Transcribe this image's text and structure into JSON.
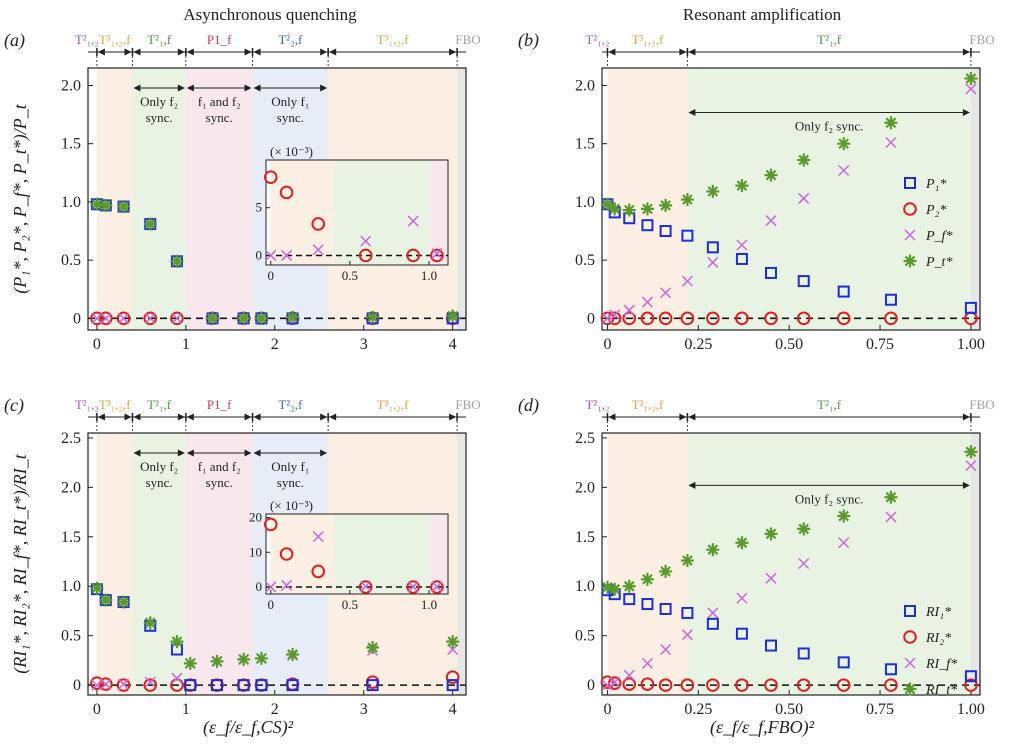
{
  "figure": {
    "col_titles": [
      "Asynchronous quenching",
      "Resonant amplification"
    ],
    "xlabel_left": "(ε_f/ε_f,CS)²",
    "xlabel_right": "(ε_f/ε_f,FBO)²"
  },
  "colors": {
    "p1": "#1a2ee0",
    "p2": "#e02020",
    "pf": "#cc66dd",
    "pt": "#5a9a2a",
    "t12": "#b04fc8",
    "t3": "#e8a040",
    "t1f": "#4a9a3a",
    "p1f": "#c83a5a",
    "t2f": "#3a6ab8",
    "fbo": "#a0a0a0"
  },
  "chart_data": [
    {
      "panel": "a",
      "type": "scatter",
      "panel_label": "(a)",
      "ylabel": "(P₁*, P₂*, P_f*, P_t*)/P_t",
      "xlim": [
        -0.1,
        4.15
      ],
      "ylim": [
        -0.1,
        2.15
      ],
      "xticks": [
        0,
        1,
        2,
        3,
        4
      ],
      "xticklabels": [
        "0",
        "1",
        "2",
        "3",
        "4"
      ],
      "yticks": [
        0,
        0.5,
        1.0,
        1.5,
        2.0
      ],
      "yticklabels": [
        "0",
        "0.5",
        "1.0",
        "1.5",
        "2.0"
      ],
      "regions": [
        {
          "label": "T²₁,₂",
          "from": -0.1,
          "to": 0.0,
          "color": "t12",
          "fill": "#ffffff"
        },
        {
          "label": "T³₁,₂,f",
          "from": 0.0,
          "to": 0.4,
          "color": "t3",
          "fill": "#fbeee2"
        },
        {
          "label": "T²₁,f",
          "from": 0.4,
          "to": 1.0,
          "color": "t1f",
          "fill": "#e9f3e4"
        },
        {
          "label": "P1_f",
          "from": 1.0,
          "to": 1.75,
          "color": "p1f",
          "fill": "#f8e8ee"
        },
        {
          "label": "T²₂,f",
          "from": 1.75,
          "to": 2.6,
          "color": "t2f",
          "fill": "#e6edf6"
        },
        {
          "label": "T³₁,₂,f",
          "from": 2.6,
          "to": 4.05,
          "color": "t3",
          "fill": "#fbeee2"
        },
        {
          "label": "FBO",
          "from": 4.05,
          "to": 4.15,
          "color": "fbo",
          "fill": "#e6e6e6"
        }
      ],
      "annotations": [
        {
          "lines": [
            "Only f₂",
            "sync."
          ],
          "from": 0.4,
          "to": 1.0
        },
        {
          "lines": [
            "f₁ and f₂",
            "sync."
          ],
          "from": 1.0,
          "to": 1.75
        },
        {
          "lines": [
            "Only f₁",
            "sync."
          ],
          "from": 1.75,
          "to": 2.6
        }
      ],
      "series": [
        {
          "key": "p1",
          "marker": "square",
          "x": [
            0,
            0.1,
            0.3,
            0.6,
            0.9,
            1.3,
            1.65,
            1.85,
            2.2,
            3.1,
            4.0
          ],
          "y": [
            0.98,
            0.97,
            0.96,
            0.81,
            0.49,
            0,
            0,
            0,
            0,
            0,
            0
          ]
        },
        {
          "key": "p2",
          "marker": "circle",
          "x": [
            0,
            0.1,
            0.3,
            0.6,
            0.9,
            1.3,
            1.65,
            1.85,
            2.2,
            3.1,
            4.0
          ],
          "y": [
            0,
            0,
            0,
            0,
            0,
            0,
            0,
            0,
            0,
            0,
            0
          ]
        },
        {
          "key": "pf",
          "marker": "x",
          "x": [
            0,
            0.1,
            0.3,
            0.6,
            0.9,
            1.3,
            1.65,
            1.85,
            2.2,
            3.1,
            4.0
          ],
          "y": [
            0,
            0,
            0,
            0,
            0,
            0,
            0,
            0,
            0,
            0.01,
            0.01
          ]
        },
        {
          "key": "pt",
          "marker": "star",
          "x": [
            0,
            0.1,
            0.3,
            0.6,
            0.9,
            1.3,
            1.65,
            1.85,
            2.2,
            3.1,
            4.0
          ],
          "y": [
            0.98,
            0.97,
            0.96,
            0.81,
            0.49,
            0,
            0,
            0,
            0.01,
            0.01,
            0.02
          ]
        }
      ],
      "inset": {
        "multiplier": "(× 10⁻³)",
        "xlim": [
          -0.03,
          1.12
        ],
        "ylim": [
          -1.0,
          10.0
        ],
        "xticks": [
          0,
          0.5,
          1.0
        ],
        "xticklabels": [
          "0",
          "0.5",
          "1.0"
        ],
        "yticks": [
          0,
          5
        ],
        "yticklabels": [
          "0",
          "5"
        ],
        "series": [
          {
            "key": "p2",
            "marker": "circle",
            "x": [
              0,
              0.1,
              0.3,
              0.6,
              0.9,
              1.05
            ],
            "y": [
              8.2,
              6.6,
              3.3,
              0,
              0,
              0
            ]
          },
          {
            "key": "pf",
            "marker": "x",
            "x": [
              0,
              0.1,
              0.3,
              0.6,
              0.9,
              1.05
            ],
            "y": [
              0,
              0,
              0.6,
              1.5,
              3.6,
              0.2
            ]
          }
        ]
      }
    },
    {
      "panel": "b",
      "type": "scatter",
      "panel_label": "(b)",
      "ylabel": "",
      "xlim": [
        -0.015,
        1.025
      ],
      "ylim": [
        -0.1,
        2.15
      ],
      "xticks": [
        0,
        0.25,
        0.5,
        0.75,
        1.0
      ],
      "xticklabels": [
        "0",
        "0.25",
        "0.50",
        "0.75",
        "1.00"
      ],
      "yticks": [
        0,
        0.5,
        1.0,
        1.5,
        2.0
      ],
      "yticklabels": [
        "0",
        "0.5",
        "1.0",
        "1.5",
        "2.0"
      ],
      "regions": [
        {
          "label": "T²₁,₂",
          "from": -0.015,
          "to": 0.0,
          "color": "t12",
          "fill": "#ffffff"
        },
        {
          "label": "T³₁,₂,f",
          "from": 0.0,
          "to": 0.22,
          "color": "t3",
          "fill": "#fbeee2"
        },
        {
          "label": "T²₁,f",
          "from": 0.22,
          "to": 1.0,
          "color": "t1f",
          "fill": "#e9f3e4"
        },
        {
          "label": "FBO",
          "from": 1.0,
          "to": 1.025,
          "color": "fbo",
          "fill": "#e6e6e6"
        }
      ],
      "annotations": [
        {
          "lines": [
            "Only f₂ sync."
          ],
          "from": 0.22,
          "to": 1.0,
          "y_frac": 0.17
        }
      ],
      "legend": {
        "position": "right",
        "entries": [
          {
            "key": "p1",
            "label": "P₁*"
          },
          {
            "key": "p2",
            "label": "P₂*"
          },
          {
            "key": "pf",
            "label": "P_f*"
          },
          {
            "key": "pt",
            "label": "P_t*"
          }
        ]
      },
      "series": [
        {
          "key": "p1",
          "marker": "square",
          "x": [
            0,
            0.02,
            0.06,
            0.11,
            0.16,
            0.22,
            0.29,
            0.37,
            0.45,
            0.54,
            0.65,
            0.78,
            1.0
          ],
          "y": [
            0.98,
            0.91,
            0.86,
            0.8,
            0.75,
            0.71,
            0.61,
            0.51,
            0.39,
            0.32,
            0.23,
            0.16,
            0.09
          ]
        },
        {
          "key": "p2",
          "marker": "circle",
          "x": [
            0,
            0.02,
            0.06,
            0.11,
            0.16,
            0.22,
            0.29,
            0.37,
            0.45,
            0.54,
            0.65,
            0.78,
            1.0
          ],
          "y": [
            0,
            0,
            0,
            0,
            0,
            0,
            0,
            0,
            0,
            0,
            0,
            0,
            0
          ]
        },
        {
          "key": "pf",
          "marker": "x",
          "x": [
            0,
            0.02,
            0.06,
            0.11,
            0.16,
            0.22,
            0.29,
            0.37,
            0.45,
            0.54,
            0.65,
            0.78,
            1.0
          ],
          "y": [
            0,
            0.03,
            0.07,
            0.14,
            0.22,
            0.32,
            0.48,
            0.63,
            0.84,
            1.03,
            1.27,
            1.51,
            1.97
          ]
        },
        {
          "key": "pt",
          "marker": "star",
          "x": [
            0,
            0.02,
            0.06,
            0.11,
            0.16,
            0.22,
            0.29,
            0.37,
            0.45,
            0.54,
            0.65,
            0.78,
            1.0
          ],
          "y": [
            0.98,
            0.94,
            0.93,
            0.94,
            0.97,
            1.02,
            1.09,
            1.14,
            1.23,
            1.36,
            1.5,
            1.68,
            2.06
          ]
        }
      ]
    },
    {
      "panel": "c",
      "type": "scatter",
      "panel_label": "(c)",
      "ylabel": "(RI₁*, RI₂*, RI_f*, RI_t*)/RI_t",
      "xlim": [
        -0.1,
        4.15
      ],
      "ylim": [
        -0.1,
        2.55
      ],
      "xticks": [
        0,
        1,
        2,
        3,
        4
      ],
      "xticklabels": [
        "0",
        "1",
        "2",
        "3",
        "4"
      ],
      "yticks": [
        0,
        0.5,
        1.0,
        1.5,
        2.0,
        2.5
      ],
      "yticklabels": [
        "0",
        "0.5",
        "1.0",
        "1.5",
        "2.0",
        "2.5"
      ],
      "regions": [
        {
          "label": "T²₁,₂",
          "from": -0.1,
          "to": 0.0,
          "color": "t12",
          "fill": "#ffffff"
        },
        {
          "label": "T³₁,₂,f",
          "from": 0.0,
          "to": 0.4,
          "color": "t3",
          "fill": "#fbeee2"
        },
        {
          "label": "T²₁,f",
          "from": 0.4,
          "to": 1.0,
          "color": "t1f",
          "fill": "#e9f3e4"
        },
        {
          "label": "P1_f",
          "from": 1.0,
          "to": 1.75,
          "color": "p1f",
          "fill": "#f8e8ee"
        },
        {
          "label": "T²₂,f",
          "from": 1.75,
          "to": 2.6,
          "color": "t2f",
          "fill": "#e6edf6"
        },
        {
          "label": "T³₁,₂,f",
          "from": 2.6,
          "to": 4.05,
          "color": "t3",
          "fill": "#fbeee2"
        },
        {
          "label": "FBO",
          "from": 4.05,
          "to": 4.15,
          "color": "fbo",
          "fill": "#e6e6e6"
        }
      ],
      "annotations": [
        {
          "lines": [
            "Only f₂",
            "sync."
          ],
          "from": 0.4,
          "to": 1.0
        },
        {
          "lines": [
            "f₁ and f₂",
            "sync."
          ],
          "from": 1.0,
          "to": 1.75
        },
        {
          "lines": [
            "Only f₁",
            "sync."
          ],
          "from": 1.75,
          "to": 2.6
        }
      ],
      "series": [
        {
          "key": "p1",
          "marker": "square",
          "x": [
            0,
            0.1,
            0.3,
            0.6,
            0.9,
            1.05,
            1.35,
            1.65,
            1.85,
            2.2,
            3.1,
            4.0
          ],
          "y": [
            0.97,
            0.86,
            0.84,
            0.6,
            0.36,
            0,
            0,
            0,
            0,
            0,
            0,
            0
          ]
        },
        {
          "key": "p2",
          "marker": "circle",
          "x": [
            0,
            0.1,
            0.3,
            0.6,
            0.9,
            1.05,
            1.35,
            1.65,
            1.85,
            2.2,
            3.1,
            4.0
          ],
          "y": [
            0.02,
            0.01,
            0.0,
            0,
            0,
            0,
            0,
            0,
            0,
            0.01,
            0.03,
            0.08
          ]
        },
        {
          "key": "pf",
          "marker": "x",
          "x": [
            0,
            0.1,
            0.3,
            0.6,
            0.9,
            1.05,
            1.35,
            1.65,
            1.85,
            2.2,
            3.1,
            4.0
          ],
          "y": [
            0,
            0.01,
            0.01,
            0.03,
            0.07,
            0.22,
            0.24,
            0.26,
            0.27,
            0.3,
            0.35,
            0.36
          ]
        },
        {
          "key": "pt",
          "marker": "star",
          "x": [
            0,
            0.1,
            0.3,
            0.6,
            0.9,
            1.05,
            1.35,
            1.65,
            1.85,
            2.2,
            3.1,
            4.0
          ],
          "y": [
            0.98,
            0.86,
            0.84,
            0.63,
            0.44,
            0.22,
            0.24,
            0.26,
            0.27,
            0.31,
            0.38,
            0.44
          ]
        }
      ],
      "inset": {
        "multiplier": "(× 10⁻³)",
        "xlim": [
          -0.03,
          1.12
        ],
        "ylim": [
          -2.0,
          21.0
        ],
        "xticks": [
          0,
          0.5,
          1.0
        ],
        "xticklabels": [
          "0",
          "0.5",
          "1.0"
        ],
        "yticks": [
          0,
          10,
          20
        ],
        "yticklabels": [
          "0",
          "10",
          "20"
        ],
        "series": [
          {
            "key": "p2",
            "marker": "circle",
            "x": [
              0,
              0.1,
              0.3,
              0.6,
              0.9,
              1.05
            ],
            "y": [
              18,
              9.5,
              4.5,
              0,
              0,
              0
            ]
          },
          {
            "key": "pf",
            "marker": "x",
            "x": [
              0,
              0.1,
              0.3,
              0.6,
              0.9,
              1.05
            ],
            "y": [
              0,
              0.5,
              14.5,
              0.2,
              0.1,
              0.1
            ]
          }
        ]
      }
    },
    {
      "panel": "d",
      "type": "scatter",
      "panel_label": "(d)",
      "ylabel": "",
      "xlim": [
        -0.015,
        1.025
      ],
      "ylim": [
        -0.1,
        2.55
      ],
      "xticks": [
        0,
        0.25,
        0.5,
        0.75,
        1.0
      ],
      "xticklabels": [
        "0",
        "0.25",
        "0.50",
        "0.75",
        "1.00"
      ],
      "yticks": [
        0,
        0.5,
        1.0,
        1.5,
        2.0,
        2.5
      ],
      "yticklabels": [
        "0",
        "0.5",
        "1.0",
        "1.5",
        "2.0",
        "2.5"
      ],
      "regions": [
        {
          "label": "T²₁,₂",
          "from": -0.015,
          "to": 0.0,
          "color": "t12",
          "fill": "#ffffff"
        },
        {
          "label": "T³₁,₂,f",
          "from": 0.0,
          "to": 0.22,
          "color": "t3",
          "fill": "#fbeee2"
        },
        {
          "label": "T²₁,f",
          "from": 0.22,
          "to": 1.0,
          "color": "t1f",
          "fill": "#e9f3e4"
        },
        {
          "label": "FBO",
          "from": 1.0,
          "to": 1.025,
          "color": "fbo",
          "fill": "#e6e6e6"
        }
      ],
      "annotations": [
        {
          "lines": [
            "Only f₂ sync."
          ],
          "from": 0.22,
          "to": 1.0,
          "y_frac": 0.2
        }
      ],
      "legend": {
        "position": "right",
        "entries": [
          {
            "key": "p1",
            "label": "RI₁*"
          },
          {
            "key": "p2",
            "label": "RI₂*"
          },
          {
            "key": "pf",
            "label": "RI_f*"
          },
          {
            "key": "pt",
            "label": "RI_t*"
          }
        ]
      },
      "series": [
        {
          "key": "p1",
          "marker": "square",
          "x": [
            0,
            0.02,
            0.06,
            0.11,
            0.16,
            0.22,
            0.29,
            0.37,
            0.45,
            0.54,
            0.65,
            0.78,
            1.0
          ],
          "y": [
            0.96,
            0.92,
            0.87,
            0.82,
            0.77,
            0.73,
            0.62,
            0.52,
            0.4,
            0.32,
            0.23,
            0.16,
            0.09
          ]
        },
        {
          "key": "p2",
          "marker": "circle",
          "x": [
            0,
            0.02,
            0.06,
            0.11,
            0.16,
            0.22,
            0.29,
            0.37,
            0.45,
            0.54,
            0.65,
            0.78,
            1.0
          ],
          "y": [
            0.03,
            0.02,
            0.01,
            0.01,
            0,
            0,
            0,
            0,
            0,
            0,
            0,
            0,
            0
          ]
        },
        {
          "key": "pf",
          "marker": "x",
          "x": [
            0,
            0.02,
            0.06,
            0.11,
            0.16,
            0.22,
            0.29,
            0.37,
            0.45,
            0.54,
            0.65,
            0.78,
            1.0
          ],
          "y": [
            0,
            0.03,
            0.1,
            0.22,
            0.36,
            0.51,
            0.73,
            0.88,
            1.08,
            1.23,
            1.44,
            1.7,
            2.22
          ]
        },
        {
          "key": "pt",
          "marker": "star",
          "x": [
            0,
            0.02,
            0.06,
            0.11,
            0.16,
            0.22,
            0.29,
            0.37,
            0.45,
            0.54,
            0.65,
            0.78,
            1.0
          ],
          "y": [
            0.99,
            0.97,
            1.0,
            1.07,
            1.15,
            1.26,
            1.37,
            1.44,
            1.53,
            1.58,
            1.71,
            1.9,
            2.36
          ]
        }
      ]
    }
  ]
}
